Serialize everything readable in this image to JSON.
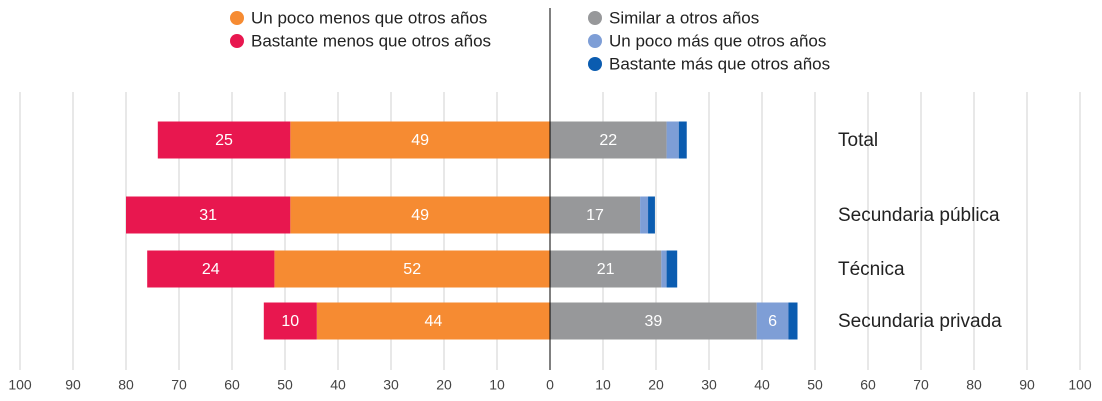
{
  "chart_data": {
    "type": "diverging-bar",
    "categories": [
      "Total",
      "Secundaria pública",
      "Técnica",
      "Secundaria privada"
    ],
    "series": [
      {
        "name": "Un poco menos que otros años",
        "color": "#f68b32",
        "side": "left",
        "values": [
          49,
          49,
          52,
          44
        ]
      },
      {
        "name": "Bastante menos que otros años",
        "color": "#e8174f",
        "side": "left",
        "values": [
          25,
          31,
          24,
          10
        ]
      },
      {
        "name": "Similar a otros años",
        "color": "#97989a",
        "side": "right",
        "values": [
          22,
          17,
          21,
          39
        ]
      },
      {
        "name": "Un poco más que otros años",
        "color": "#7e9ed6",
        "side": "right",
        "values": [
          2.3,
          1.5,
          1,
          6
        ]
      },
      {
        "name": "Bastante más que otros años",
        "color": "#0b5cb0",
        "side": "right",
        "values": [
          1.5,
          1.3,
          2,
          1.7
        ]
      }
    ],
    "xlim": [
      -100,
      100
    ],
    "xticks": [
      {
        "value": -100,
        "label": "100"
      },
      {
        "value": -90,
        "label": "90"
      },
      {
        "value": -80,
        "label": "80"
      },
      {
        "value": -70,
        "label": "70"
      },
      {
        "value": -60,
        "label": "60"
      },
      {
        "value": -50,
        "label": "50"
      },
      {
        "value": -40,
        "label": "40"
      },
      {
        "value": -30,
        "label": "30"
      },
      {
        "value": -20,
        "label": "20"
      },
      {
        "value": -10,
        "label": "10"
      },
      0,
      10,
      20,
      30,
      40,
      50,
      60,
      70,
      80,
      90,
      100
    ],
    "grid": true
  }
}
